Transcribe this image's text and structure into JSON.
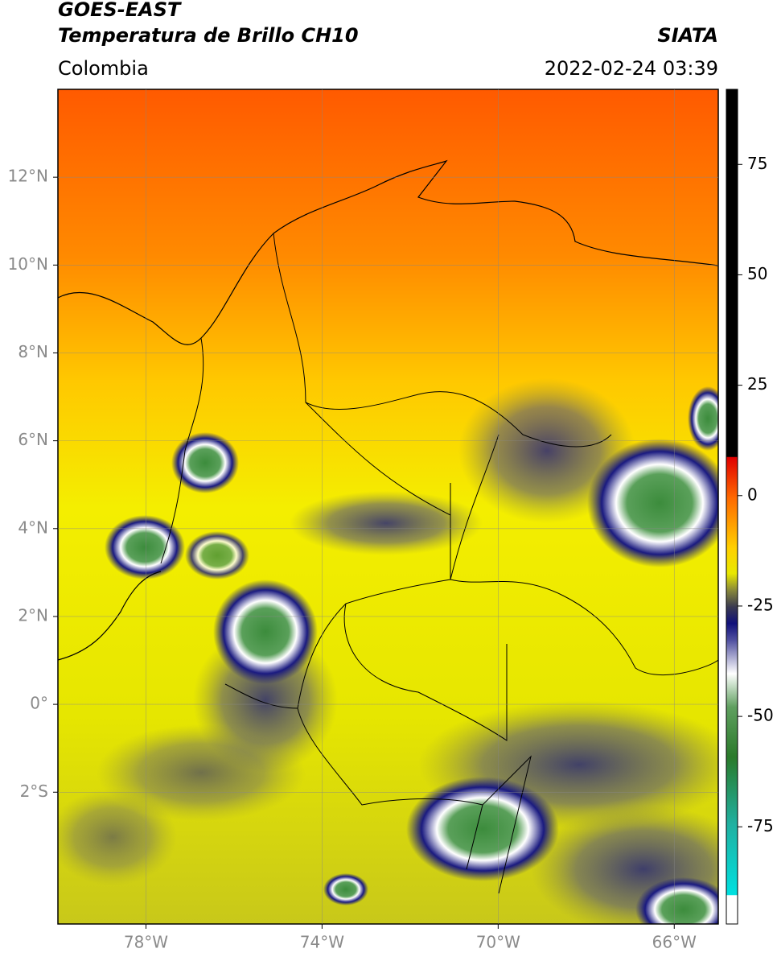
{
  "header": {
    "title_line1": "GOES-EAST",
    "title_line2": "Temperatura de Brillo CH10",
    "source": "SIATA",
    "region": "Colombia",
    "datetime": "2022-02-24 03:39"
  },
  "map": {
    "xlim": [
      -80,
      -65
    ],
    "ylim": [
      -5,
      14
    ],
    "xticks": [
      {
        "value": -78,
        "label": "78°W"
      },
      {
        "value": -74,
        "label": "74°W"
      },
      {
        "value": -70,
        "label": "70°W"
      },
      {
        "value": -66,
        "label": "66°W"
      }
    ],
    "yticks": [
      {
        "value": 12,
        "label": "12°N"
      },
      {
        "value": 10,
        "label": "10°N"
      },
      {
        "value": 8,
        "label": "8°N"
      },
      {
        "value": 6,
        "label": "6°N"
      },
      {
        "value": 4,
        "label": "4°N"
      },
      {
        "value": 2,
        "label": "2°N"
      },
      {
        "value": 0,
        "label": "0°"
      },
      {
        "value": -2,
        "label": "2°S"
      }
    ],
    "grid": true
  },
  "colorbar": {
    "lim": [
      -97,
      92
    ],
    "ticks": [
      75,
      50,
      25,
      0,
      -25,
      -50,
      -75
    ]
  }
}
